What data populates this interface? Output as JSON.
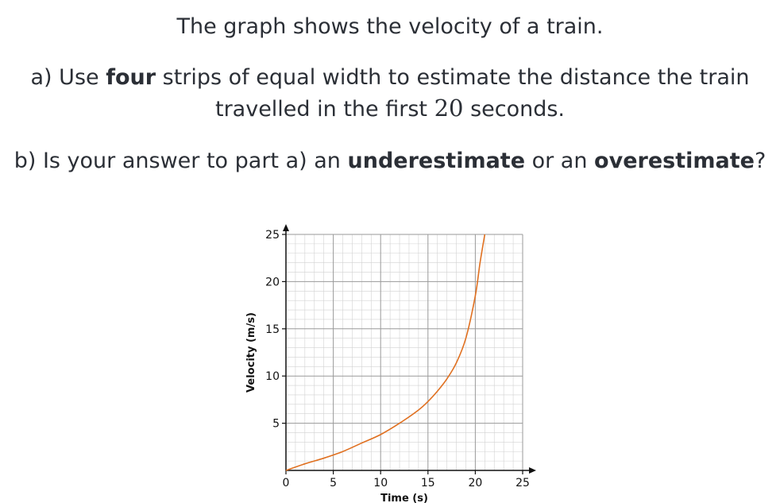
{
  "question": {
    "line1": "The graph shows the velocity of a train.",
    "a_prefix": "a) Use ",
    "a_bold": "four",
    "a_rest": " strips of equal width to estimate the distance the train",
    "a2_prefix": "travelled in the first ",
    "a2_num": "20",
    "a2_rest": " seconds.",
    "b_prefix": "b) Is your answer to part a) an ",
    "b_bold1": "underestimate",
    "b_mid": " or an ",
    "b_bold2": "overestimate",
    "b_end": "?"
  },
  "colors": {
    "curve": "#e07020",
    "major_grid": "#9a9a9a",
    "minor_grid": "#d2d2d2",
    "axis": "#111111"
  },
  "chart_data": {
    "type": "line",
    "xlabel": "Time (s)",
    "ylabel": "Velocity (m/s)",
    "xlim": [
      0,
      25
    ],
    "ylim": [
      0,
      25
    ],
    "xticks": [
      "0",
      "5",
      "10",
      "15",
      "20",
      "25"
    ],
    "yticks": [
      "5",
      "10",
      "15",
      "20",
      "25"
    ],
    "grid": true,
    "series": [
      {
        "x": [
          0,
          2,
          4,
          6,
          8,
          10,
          12,
          14,
          15,
          16,
          17,
          18,
          19,
          20,
          20.5,
          21
        ],
        "y": [
          0,
          0.7,
          1.3,
          2.0,
          2.9,
          3.8,
          5.0,
          6.4,
          7.3,
          8.4,
          9.7,
          11.4,
          14.0,
          18.5,
          22.0,
          25.0
        ]
      }
    ]
  }
}
